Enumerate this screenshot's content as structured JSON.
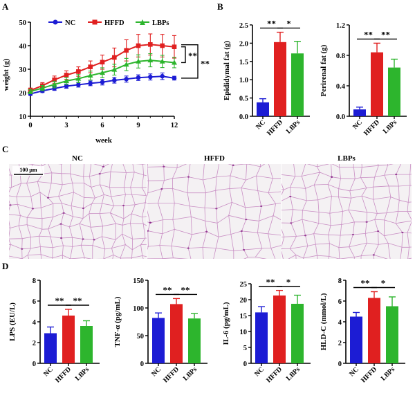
{
  "panel_labels": [
    "A",
    "B",
    "C",
    "D"
  ],
  "colors": {
    "NC": "#1c1cd4",
    "HFFD": "#e02020",
    "LBPs": "#2db52d",
    "axis": "#000000",
    "tissue": "#f4f1f3",
    "membrane": "#c98fc4",
    "nucleus": "#8a2a8a"
  },
  "chart_data": [
    {
      "id": "A",
      "type": "line",
      "xlabel": "week",
      "ylabel": "weight (g)",
      "xlim": [
        0,
        12
      ],
      "ylim": [
        10,
        50
      ],
      "xticks": [
        0,
        3,
        6,
        9,
        12
      ],
      "yticks": [
        10,
        20,
        30,
        40,
        50
      ],
      "legend_position": "top",
      "x": [
        0,
        1,
        2,
        3,
        4,
        5,
        6,
        7,
        8,
        9,
        10,
        11,
        12
      ],
      "series": [
        {
          "name": "NC",
          "color": "#1c1cd4",
          "marker": "circle",
          "values": [
            19.5,
            20.8,
            21.8,
            22.8,
            23.4,
            24.0,
            24.5,
            25.3,
            25.8,
            26.4,
            26.7,
            27.0,
            26.2
          ],
          "errors": [
            0.6,
            0.7,
            0.8,
            0.9,
            1.0,
            1.0,
            1.2,
            1.2,
            1.3,
            1.2,
            1.3,
            1.4,
            0.8
          ]
        },
        {
          "name": "HFFD",
          "color": "#e02020",
          "marker": "square",
          "values": [
            21.0,
            23.0,
            25.5,
            27.5,
            29.0,
            31.0,
            33.0,
            35.0,
            38.0,
            40.0,
            40.5,
            40.0,
            39.5
          ],
          "errors": [
            1.0,
            1.3,
            1.6,
            1.8,
            2.0,
            2.5,
            3.0,
            4.0,
            4.5,
            4.8,
            4.5,
            4.8,
            4.8
          ]
        },
        {
          "name": "LBPs",
          "color": "#2db52d",
          "marker": "triangle",
          "values": [
            20.5,
            22.0,
            23.5,
            25.0,
            26.0,
            27.3,
            28.5,
            29.8,
            32.0,
            33.3,
            33.8,
            33.3,
            32.8
          ],
          "errors": [
            0.9,
            1.1,
            1.4,
            1.5,
            1.7,
            1.9,
            2.1,
            2.3,
            2.6,
            2.8,
            2.8,
            2.6,
            2.2
          ]
        }
      ],
      "significance": [
        {
          "label": "**"
        },
        {
          "label": "**"
        }
      ]
    },
    {
      "id": "B-epididymal",
      "type": "bar",
      "ylabel": "Epididymal fat (g)",
      "categories": [
        "NC",
        "HFFD",
        "LBPs"
      ],
      "values": [
        0.38,
        2.03,
        1.72
      ],
      "errors": [
        0.1,
        0.27,
        0.33
      ],
      "ylim": [
        0,
        2.5
      ],
      "yticks": [
        "0.0",
        "0.5",
        "1.0",
        "1.5",
        "2.0",
        "2.5"
      ],
      "significance": [
        {
          "label": "**",
          "from": 0,
          "to": 1
        },
        {
          "label": "*",
          "from": 1,
          "to": 2
        }
      ]
    },
    {
      "id": "B-perirenal",
      "type": "bar",
      "ylabel": "Perirenal fat (g)",
      "categories": [
        "NC",
        "HFFD",
        "LBPs"
      ],
      "values": [
        0.09,
        0.84,
        0.64
      ],
      "errors": [
        0.03,
        0.12,
        0.11
      ],
      "ylim": [
        0,
        1.2
      ],
      "yticks": [
        "0.0",
        "0.4",
        "0.8",
        "1.2"
      ],
      "significance": [
        {
          "label": "**",
          "from": 0,
          "to": 1
        },
        {
          "label": "**",
          "from": 1,
          "to": 2
        }
      ]
    },
    {
      "id": "D-LPS",
      "type": "bar",
      "ylabel": "LPS (EU/L)",
      "categories": [
        "NC",
        "HFFD",
        "LBPs"
      ],
      "values": [
        2.9,
        4.6,
        3.6
      ],
      "errors": [
        0.6,
        0.6,
        0.5
      ],
      "ylim": [
        0,
        8
      ],
      "yticks": [
        "0",
        "2",
        "4",
        "6",
        "8"
      ],
      "significance": [
        {
          "label": "**",
          "from": 0,
          "to": 1
        },
        {
          "label": "**",
          "from": 1,
          "to": 2
        }
      ]
    },
    {
      "id": "D-TNF",
      "type": "bar",
      "ylabel": "TNF-α (pg/mL)",
      "categories": [
        "NC",
        "HFFD",
        "LBPs"
      ],
      "values": [
        82,
        107,
        81
      ],
      "errors": [
        9,
        10,
        9
      ],
      "ylim": [
        0,
        150
      ],
      "yticks": [
        "0",
        "50",
        "100",
        "150"
      ],
      "significance": [
        {
          "label": "**",
          "from": 0,
          "to": 1
        },
        {
          "label": "**",
          "from": 1,
          "to": 2
        }
      ]
    },
    {
      "id": "D-IL6",
      "type": "bar",
      "ylabel": "IL-6 (pg/mL)",
      "categories": [
        "NC",
        "HFFD",
        "LBPs"
      ],
      "values": [
        16.0,
        21.3,
        18.7
      ],
      "errors": [
        1.8,
        1.6,
        2.7
      ],
      "ylim": [
        0,
        25
      ],
      "yticks": [
        "0",
        "5",
        "10",
        "15",
        "20",
        "25"
      ],
      "significance": [
        {
          "label": "**",
          "from": 0,
          "to": 1
        },
        {
          "label": "*",
          "from": 1,
          "to": 2
        }
      ]
    },
    {
      "id": "D-HLDC",
      "type": "bar",
      "ylabel": "HLD-C (mmol/L)",
      "categories": [
        "NC",
        "HFFD",
        "LBPs"
      ],
      "values": [
        4.5,
        6.3,
        5.5
      ],
      "errors": [
        0.4,
        0.6,
        0.9
      ],
      "ylim": [
        0,
        8
      ],
      "yticks": [
        "0",
        "2",
        "4",
        "6",
        "8"
      ],
      "significance": [
        {
          "label": "**",
          "from": 0,
          "to": 1
        },
        {
          "label": "*",
          "from": 1,
          "to": 2
        }
      ]
    }
  ],
  "histology": {
    "panels": [
      {
        "title": "NC",
        "scale_bar": "100 μm"
      },
      {
        "title": "HFFD"
      },
      {
        "title": "LBPs"
      }
    ]
  }
}
